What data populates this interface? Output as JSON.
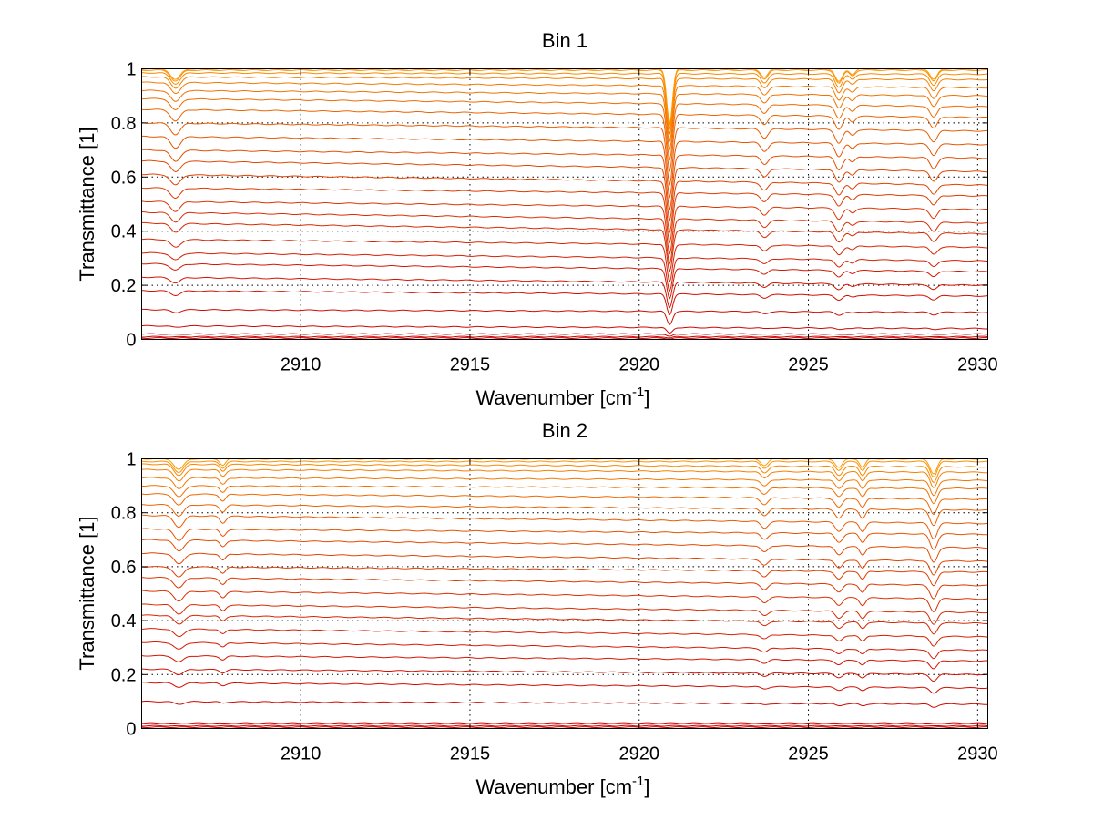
{
  "chart_data": [
    {
      "type": "line",
      "title": "Bin 1",
      "xlabel": "Wavenumber [cm",
      "xlabel_sup": "-1",
      "xlabel_tail": "]",
      "ylabel": "Transmittance [1]",
      "xlim": [
        2905.3,
        2930.3
      ],
      "ylim": [
        0,
        1
      ],
      "xticks": [
        2910,
        2915,
        2920,
        2925,
        2930
      ],
      "xtick_labels": [
        "2910",
        "2915",
        "2920",
        "2925",
        "2930"
      ],
      "yticks": [
        0,
        0.2,
        0.4,
        0.6,
        0.8,
        1
      ],
      "ytick_labels": [
        "0",
        "0.2",
        "0.4",
        "0.6",
        "0.8",
        "1"
      ],
      "grid": true,
      "baselines_left": [
        0.005,
        0.01,
        0.02,
        0.05,
        0.11,
        0.18,
        0.23,
        0.28,
        0.32,
        0.37,
        0.43,
        0.47,
        0.51,
        0.56,
        0.61,
        0.66,
        0.7,
        0.75,
        0.8,
        0.85,
        0.89,
        0.92,
        0.95,
        0.97,
        0.985,
        0.995,
        1.0
      ],
      "baselines_right": [
        0.005,
        0.01,
        0.02,
        0.04,
        0.1,
        0.16,
        0.2,
        0.25,
        0.29,
        0.34,
        0.39,
        0.43,
        0.48,
        0.53,
        0.57,
        0.62,
        0.67,
        0.72,
        0.77,
        0.82,
        0.86,
        0.9,
        0.93,
        0.96,
        0.98,
        0.995,
        1.0
      ],
      "absorption_lines": [
        {
          "x": 2906.3,
          "depth": 0.1,
          "width": 0.2
        },
        {
          "x": 2920.9,
          "depth": 0.5,
          "width": 0.12
        },
        {
          "x": 2923.7,
          "depth": 0.08,
          "width": 0.15
        },
        {
          "x": 2925.9,
          "depth": 0.12,
          "width": 0.15
        },
        {
          "x": 2926.3,
          "depth": 0.05,
          "width": 0.12
        },
        {
          "x": 2928.7,
          "depth": 0.1,
          "width": 0.15
        }
      ],
      "color_start": "#cc0000",
      "color_end": "#ff9900"
    },
    {
      "type": "line",
      "title": "Bin 2",
      "xlabel": "Wavenumber [cm",
      "xlabel_sup": "-1",
      "xlabel_tail": "]",
      "ylabel": "Transmittance [1]",
      "xlim": [
        2905.3,
        2930.3
      ],
      "ylim": [
        0,
        1
      ],
      "xticks": [
        2910,
        2915,
        2920,
        2925,
        2930
      ],
      "xtick_labels": [
        "2910",
        "2915",
        "2920",
        "2925",
        "2930"
      ],
      "yticks": [
        0,
        0.2,
        0.4,
        0.6,
        0.8,
        1
      ],
      "ytick_labels": [
        "0",
        "0.2",
        "0.4",
        "0.6",
        "0.8",
        "1"
      ],
      "grid": true,
      "baselines_left": [
        0.005,
        0.01,
        0.02,
        0.1,
        0.17,
        0.22,
        0.27,
        0.32,
        0.37,
        0.42,
        0.46,
        0.51,
        0.56,
        0.6,
        0.65,
        0.7,
        0.74,
        0.79,
        0.83,
        0.87,
        0.9,
        0.93,
        0.96,
        0.98,
        0.99,
        1.0
      ],
      "baselines_right": [
        0.005,
        0.01,
        0.02,
        0.09,
        0.15,
        0.2,
        0.25,
        0.29,
        0.34,
        0.39,
        0.43,
        0.48,
        0.53,
        0.58,
        0.62,
        0.67,
        0.72,
        0.76,
        0.81,
        0.85,
        0.89,
        0.92,
        0.95,
        0.97,
        0.99,
        1.0
      ],
      "absorption_lines": [
        {
          "x": 2906.4,
          "depth": 0.1,
          "width": 0.2
        },
        {
          "x": 2907.7,
          "depth": 0.06,
          "width": 0.12
        },
        {
          "x": 2923.7,
          "depth": 0.06,
          "width": 0.15
        },
        {
          "x": 2925.9,
          "depth": 0.08,
          "width": 0.15
        },
        {
          "x": 2926.6,
          "depth": 0.08,
          "width": 0.12
        },
        {
          "x": 2928.7,
          "depth": 0.14,
          "width": 0.15
        }
      ],
      "color_start": "#cc0000",
      "color_end": "#ff9900"
    }
  ]
}
